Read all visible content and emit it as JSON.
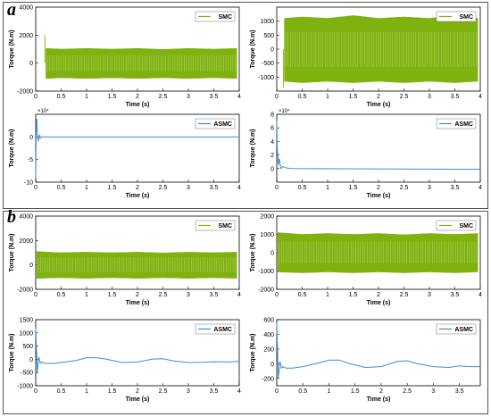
{
  "panels": [
    {
      "letter": "a"
    },
    {
      "letter": "b"
    }
  ],
  "chart_data": [
    {
      "id": "a-top-left",
      "type": "line",
      "style": "band",
      "xlabel": "Time (s)",
      "ylabel": "Torque (N.m)",
      "xlim": [
        0,
        4
      ],
      "ylim": [
        -2000,
        4000
      ],
      "xticks": [
        "0",
        "0.5",
        "1",
        "1.5",
        "2",
        "2.5",
        "3",
        "3.5",
        "4"
      ],
      "yticks": [
        "-2000",
        "0",
        "2000",
        "4000"
      ],
      "color": "#7fb20f",
      "series": [
        {
          "name": "SMC",
          "x": [
            0.2,
            0.5,
            1.0,
            1.5,
            2.0,
            2.5,
            3.0,
            3.5,
            3.95
          ],
          "upper": [
            1050,
            1000,
            1050,
            1000,
            1050,
            980,
            1050,
            1000,
            1050
          ],
          "lower": [
            -1100,
            -1050,
            -1100,
            -1050,
            -1100,
            -1050,
            -1100,
            -1050,
            -1100
          ]
        }
      ],
      "spikes": [
        {
          "x": 0.18,
          "y": 2000
        }
      ]
    },
    {
      "id": "a-top-right",
      "type": "line",
      "style": "band",
      "xlabel": "Time (s)",
      "ylabel": "Torque (N.m)",
      "xlim": [
        0,
        4
      ],
      "ylim": [
        -1500,
        1500
      ],
      "xticks": [
        "0",
        "0.5",
        "1",
        "1.5",
        "2",
        "2.5",
        "3",
        "3.5",
        "4"
      ],
      "yticks": [
        "-1000",
        "-500",
        "0",
        "500",
        "1000"
      ],
      "color": "#7fb20f",
      "series": [
        {
          "name": "SMC",
          "x": [
            0.15,
            0.5,
            1.0,
            1.5,
            2.0,
            2.5,
            3.0,
            3.5,
            3.95
          ],
          "upper": [
            1100,
            1150,
            1100,
            1200,
            1100,
            1150,
            1100,
            1200,
            1100
          ],
          "lower": [
            -1150,
            -1200,
            -1150,
            -1200,
            -1150,
            -1200,
            -1150,
            -1200,
            -1150
          ]
        }
      ],
      "spikes": [
        {
          "x": 0.13,
          "y": -1400
        }
      ]
    },
    {
      "id": "a-bottom-left",
      "type": "line",
      "xlabel": "Time (s)",
      "ylabel": "Torque (N.m)",
      "xlim": [
        0,
        4
      ],
      "ylim": [
        -10,
        5
      ],
      "yexp": "×10⁴",
      "xticks": [
        "0",
        "0.5",
        "1",
        "1.5",
        "2",
        "2.5",
        "3",
        "3.5",
        "4"
      ],
      "yticks": [
        "-10",
        "-5",
        "0"
      ],
      "color": "#3a8fd0",
      "series": [
        {
          "name": "ASMC",
          "x": [
            0,
            0.01,
            0.02,
            0.03,
            0.05,
            0.07,
            0.09,
            0.12,
            0.15,
            0.2,
            0.3,
            4.0
          ],
          "y": [
            -9,
            2,
            4,
            1,
            -1,
            0.5,
            -0.3,
            0.1,
            0,
            0,
            0,
            0
          ]
        }
      ]
    },
    {
      "id": "a-bottom-right",
      "type": "line",
      "xlabel": "Time (s)",
      "ylabel": "Torque (N.m)",
      "xlim": [
        0,
        4
      ],
      "ylim": [
        -2,
        8
      ],
      "yexp": "×10⁴",
      "xticks": [
        "0",
        "0.5",
        "1",
        "1.5",
        "2",
        "2.5",
        "3",
        "3.5",
        "4"
      ],
      "yticks": [
        "0",
        "2",
        "4",
        "6",
        "8"
      ],
      "color": "#3a8fd0",
      "series": [
        {
          "name": "ASMC",
          "x": [
            0,
            0.01,
            0.03,
            0.05,
            0.08,
            0.12,
            0.18,
            0.3,
            4.0
          ],
          "y": [
            7,
            3,
            0.5,
            1.5,
            0,
            0.3,
            0.1,
            0,
            -0.1
          ]
        }
      ]
    },
    {
      "id": "b-top-left",
      "type": "line",
      "style": "band",
      "xlabel": "Time (s)",
      "ylabel": "Torque (N.m)",
      "xlim": [
        0,
        4
      ],
      "ylim": [
        -2000,
        4000
      ],
      "xticks": [
        "0",
        "0.5",
        "1",
        "1.5",
        "2",
        "2.5",
        "3",
        "3.5",
        "4"
      ],
      "yticks": [
        "-2000",
        "0",
        "2000",
        "4000"
      ],
      "color": "#7fb20f",
      "series": [
        {
          "name": "SMC",
          "x": [
            0.02,
            0.5,
            1.0,
            1.5,
            2.0,
            2.5,
            3.0,
            3.5,
            3.95
          ],
          "upper": [
            1100,
            1000,
            1050,
            1000,
            1050,
            980,
            1050,
            1000,
            1050
          ],
          "lower": [
            -1100,
            -1050,
            -1100,
            -1050,
            -1100,
            -1050,
            -1100,
            -1050,
            -1100
          ]
        }
      ],
      "spikes": []
    },
    {
      "id": "b-top-right",
      "type": "line",
      "style": "band",
      "xlabel": "Time (s)",
      "ylabel": "Torque (N.m)",
      "xlim": [
        0,
        4
      ],
      "ylim": [
        -2000,
        2000
      ],
      "xticks": [
        "0",
        "0.5",
        "1",
        "1.5",
        "2",
        "2.5",
        "3",
        "3.5",
        "4"
      ],
      "yticks": [
        "-2000",
        "-1000",
        "0",
        "1000",
        "2000"
      ],
      "color": "#7fb20f",
      "series": [
        {
          "name": "SMC",
          "x": [
            0.02,
            0.5,
            1.0,
            1.5,
            2.0,
            2.5,
            3.0,
            3.5,
            3.95
          ],
          "upper": [
            1100,
            1000,
            1050,
            1000,
            1050,
            980,
            1050,
            1000,
            1050
          ],
          "lower": [
            -1050,
            -1100,
            -1050,
            -1100,
            -1050,
            -1100,
            -1050,
            -1100,
            -1050
          ]
        }
      ],
      "spikes": []
    },
    {
      "id": "b-bottom-left",
      "type": "line",
      "xlabel": "Time (s)",
      "ylabel": "Torque (N.m)",
      "xlim": [
        0,
        4
      ],
      "ylim": [
        -1000,
        1500
      ],
      "xticks": [
        "0",
        "0.5",
        "1",
        "1.5",
        "2",
        "2.5",
        "3",
        "3.5",
        "4"
      ],
      "yticks": [
        "-1000",
        "-500",
        "0",
        "500",
        "1000",
        "1500"
      ],
      "color": "#3a8fd0",
      "series": [
        {
          "name": "ASMC",
          "x": [
            0,
            0.03,
            0.06,
            0.09,
            0.12,
            0.18,
            0.3,
            0.5,
            0.8,
            1.0,
            1.2,
            1.4,
            1.7,
            2.0,
            2.3,
            2.5,
            2.7,
            3.0,
            3.3,
            3.5,
            3.8,
            4.0
          ],
          "y": [
            1200,
            -500,
            100,
            -150,
            -100,
            -150,
            -160,
            -120,
            -40,
            60,
            60,
            0,
            -120,
            -100,
            10,
            20,
            -60,
            -120,
            -110,
            -90,
            -100,
            -70
          ]
        }
      ]
    },
    {
      "id": "b-bottom-right",
      "type": "line",
      "xlabel": "Time (s)",
      "ylabel": "Torque (N.m)",
      "xlim": [
        0,
        3.9
      ],
      "ylim": [
        -300,
        600
      ],
      "xticks": [
        "0",
        "0.5",
        "1",
        "1.5",
        "2",
        "2.5",
        "3",
        "3.5"
      ],
      "yticks": [
        "-200",
        "0",
        "200",
        "400",
        "600"
      ],
      "color": "#3a8fd0",
      "series": [
        {
          "name": "ASMC",
          "x": [
            0,
            0.03,
            0.06,
            0.09,
            0.12,
            0.18,
            0.3,
            0.5,
            0.8,
            1.0,
            1.2,
            1.4,
            1.7,
            2.0,
            2.3,
            2.5,
            2.7,
            3.0,
            3.3,
            3.5,
            3.7,
            3.9
          ],
          "y": [
            550,
            -200,
            30,
            -60,
            -40,
            -60,
            -60,
            -40,
            10,
            50,
            50,
            0,
            -50,
            -40,
            30,
            40,
            0,
            -40,
            -50,
            -30,
            -40,
            -40
          ]
        }
      ]
    }
  ]
}
